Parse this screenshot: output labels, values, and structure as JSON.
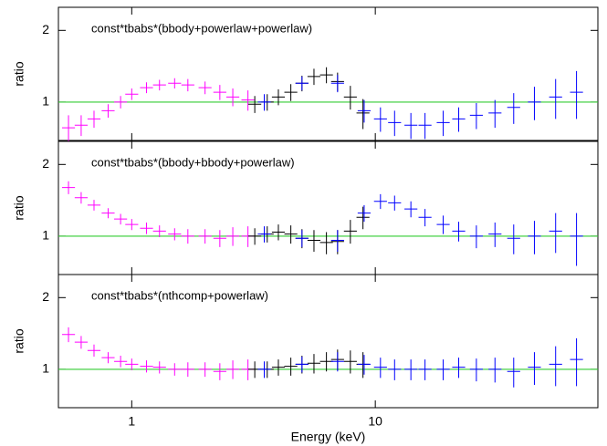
{
  "chart_data": [
    {
      "type": "scatter",
      "title": "const*tbabs*(bbody+powerlaw+powerlaw)",
      "ylabel": "ratio",
      "xscale": "log",
      "yscale": "log",
      "xlim": [
        0.5,
        82
      ],
      "ylim": [
        0.69,
        2.5
      ],
      "yticks": [
        1,
        2
      ],
      "reference_line": 1,
      "reference_color": "#33cc33",
      "series": [
        {
          "color": "#ff00ff",
          "x": [
            0.55,
            0.62,
            0.7,
            0.8,
            0.9,
            1.0,
            1.15,
            1.3,
            1.5,
            1.7,
            2.0,
            2.3,
            2.6,
            3.0
          ],
          "values": [
            0.78,
            0.8,
            0.85,
            0.92,
            1.0,
            1.08,
            1.15,
            1.18,
            1.2,
            1.18,
            1.15,
            1.1,
            1.05,
            1.02
          ],
          "errors": [
            0.1,
            0.08,
            0.07,
            0.06,
            0.06,
            0.06,
            0.06,
            0.06,
            0.06,
            0.07,
            0.07,
            0.08,
            0.09,
            0.1
          ]
        },
        {
          "color": "#000000",
          "x": [
            3.2,
            3.6,
            4.0,
            4.5,
            5.0,
            5.6,
            6.3,
            7.0,
            7.9,
            8.9
          ],
          "values": [
            0.98,
            1.0,
            1.05,
            1.1,
            1.2,
            1.28,
            1.3,
            1.22,
            1.05,
            0.9
          ],
          "errors": [
            0.08,
            0.08,
            0.08,
            0.09,
            0.09,
            0.1,
            0.1,
            0.11,
            0.12,
            0.13
          ]
        },
        {
          "color": "#0000ff",
          "x": [
            3.5,
            5,
            7,
            9,
            10.5,
            12,
            14,
            16,
            19,
            22,
            26,
            31,
            37,
            45,
            55,
            67
          ],
          "values": [
            1.0,
            1.2,
            1.2,
            0.92,
            0.85,
            0.82,
            0.8,
            0.8,
            0.82,
            0.85,
            0.88,
            0.9,
            0.95,
            1.0,
            1.05,
            1.1
          ],
          "errors": [
            0.08,
            0.08,
            0.1,
            0.1,
            0.1,
            0.1,
            0.1,
            0.1,
            0.1,
            0.1,
            0.11,
            0.12,
            0.14,
            0.16,
            0.2,
            0.25
          ]
        }
      ]
    },
    {
      "type": "scatter",
      "title": "const*tbabs*(bbody+bbody+powerlaw)",
      "ylabel": "ratio",
      "xscale": "log",
      "yscale": "log",
      "xlim": [
        0.5,
        82
      ],
      "ylim": [
        0.69,
        2.5
      ],
      "yticks": [
        1,
        2
      ],
      "reference_line": 1,
      "reference_color": "#33cc33",
      "series": [
        {
          "color": "#ff00ff",
          "x": [
            0.55,
            0.62,
            0.7,
            0.8,
            0.9,
            1.0,
            1.15,
            1.3,
            1.5,
            1.7,
            2.0,
            2.3,
            2.6,
            3.0
          ],
          "values": [
            1.6,
            1.45,
            1.35,
            1.25,
            1.18,
            1.12,
            1.08,
            1.05,
            1.02,
            1.0,
            1.0,
            0.98,
            1.0,
            1.0
          ],
          "errors": [
            0.1,
            0.08,
            0.07,
            0.06,
            0.06,
            0.06,
            0.06,
            0.06,
            0.06,
            0.07,
            0.07,
            0.08,
            0.09,
            0.1
          ]
        },
        {
          "color": "#000000",
          "x": [
            3.2,
            3.6,
            4.0,
            4.5,
            5.0,
            5.6,
            6.3,
            7.0,
            7.9,
            8.9
          ],
          "values": [
            1.0,
            1.02,
            1.04,
            1.02,
            0.98,
            0.96,
            0.94,
            0.95,
            1.05,
            1.2
          ],
          "errors": [
            0.08,
            0.08,
            0.08,
            0.09,
            0.09,
            0.1,
            0.1,
            0.11,
            0.12,
            0.13
          ]
        },
        {
          "color": "#0000ff",
          "x": [
            3.5,
            5,
            7,
            9,
            10.5,
            12,
            14,
            16,
            19,
            22,
            26,
            31,
            37,
            45,
            55,
            67
          ],
          "values": [
            1.02,
            0.98,
            0.96,
            1.25,
            1.4,
            1.38,
            1.3,
            1.2,
            1.12,
            1.05,
            1.0,
            1.02,
            0.98,
            1.0,
            1.05,
            1.0
          ],
          "errors": [
            0.08,
            0.08,
            0.1,
            0.1,
            0.1,
            0.1,
            0.1,
            0.1,
            0.1,
            0.1,
            0.11,
            0.12,
            0.14,
            0.16,
            0.2,
            0.25
          ]
        }
      ]
    },
    {
      "type": "scatter",
      "title": "const*tbabs*(nthcomp+powerlaw)",
      "ylabel": "ratio",
      "xlabel": "Energy (keV)",
      "xscale": "log",
      "yscale": "log",
      "xlim": [
        0.5,
        82
      ],
      "ylim": [
        0.69,
        2.5
      ],
      "yticks": [
        1,
        2
      ],
      "xticks": [
        1,
        10
      ],
      "reference_line": 1,
      "reference_color": "#33cc33",
      "series": [
        {
          "color": "#ff00ff",
          "x": [
            0.55,
            0.62,
            0.7,
            0.8,
            0.9,
            1.0,
            1.15,
            1.3,
            1.5,
            1.7,
            2.0,
            2.3,
            2.6,
            3.0
          ],
          "values": [
            1.4,
            1.3,
            1.2,
            1.12,
            1.08,
            1.05,
            1.03,
            1.02,
            1.0,
            1.0,
            1.0,
            0.98,
            1.0,
            1.0
          ],
          "errors": [
            0.1,
            0.08,
            0.07,
            0.06,
            0.06,
            0.06,
            0.06,
            0.06,
            0.06,
            0.07,
            0.07,
            0.08,
            0.09,
            0.1
          ]
        },
        {
          "color": "#000000",
          "x": [
            3.2,
            3.6,
            4.0,
            4.5,
            5.0,
            5.6,
            6.3,
            7.0,
            7.9,
            8.9
          ],
          "values": [
            1.0,
            1.0,
            1.02,
            1.03,
            1.05,
            1.06,
            1.08,
            1.1,
            1.08,
            1.05
          ],
          "errors": [
            0.08,
            0.08,
            0.08,
            0.09,
            0.09,
            0.1,
            0.1,
            0.11,
            0.12,
            0.13
          ]
        },
        {
          "color": "#0000ff",
          "x": [
            3.5,
            5,
            7,
            9,
            10.5,
            12,
            14,
            16,
            19,
            22,
            26,
            31,
            37,
            45,
            55,
            67
          ],
          "values": [
            1.0,
            1.05,
            1.08,
            1.05,
            1.02,
            1.0,
            1.0,
            1.0,
            1.0,
            1.02,
            1.0,
            1.0,
            0.98,
            1.02,
            1.05,
            1.1
          ],
          "errors": [
            0.08,
            0.08,
            0.1,
            0.1,
            0.1,
            0.1,
            0.1,
            0.1,
            0.1,
            0.1,
            0.11,
            0.12,
            0.14,
            0.16,
            0.2,
            0.25
          ]
        }
      ]
    }
  ]
}
